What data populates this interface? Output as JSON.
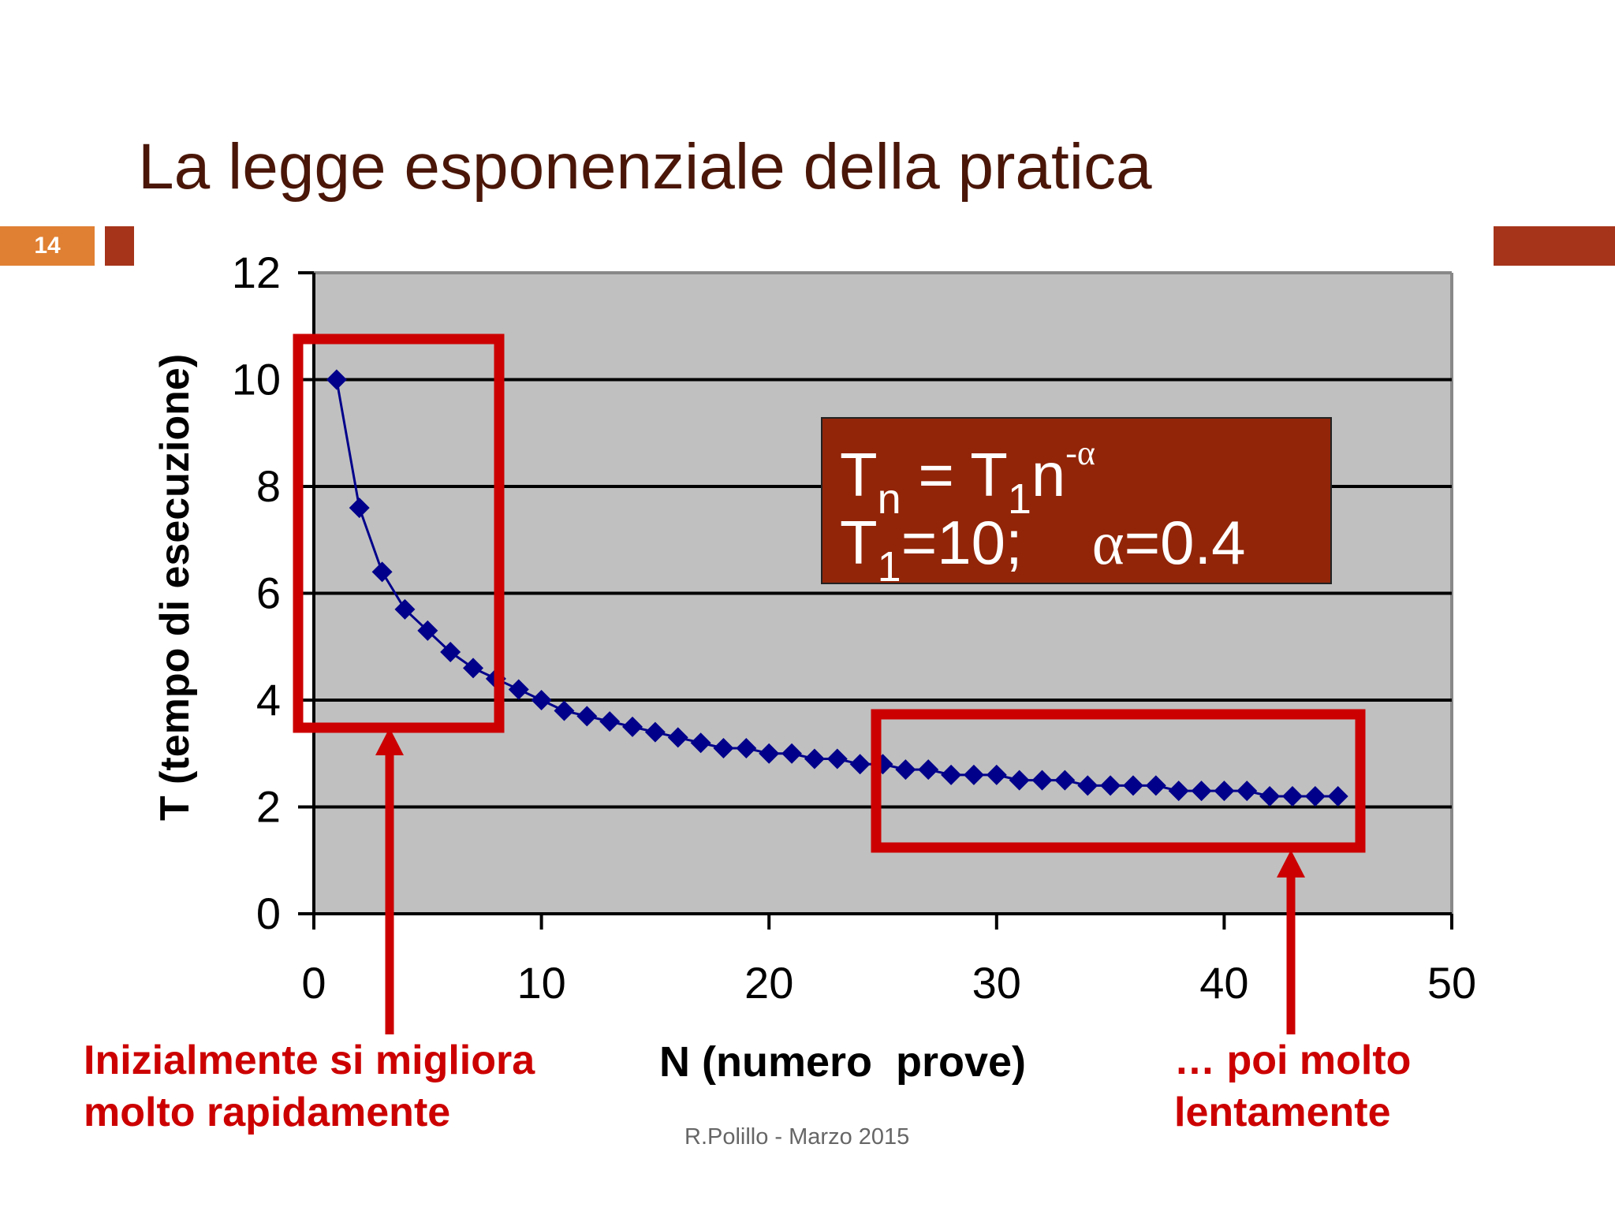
{
  "slide": {
    "title": "La legge esponenziale della pratica",
    "number": "14",
    "footer": "R.Polillo -  Marzo 2015"
  },
  "formula": {
    "T": "T",
    "n_sub": "n",
    "equals": " = ",
    "one_sub": "1",
    "n": "n",
    "exp": "-α",
    "line2_T1": "=10;",
    "alpha": "α",
    "line2_alpha": "=0.4"
  },
  "annotations": {
    "left_line1": "Inizialmente si migliora",
    "left_line2": "molto rapidamente",
    "right_line1": "… poi molto",
    "right_line2": "lentamente"
  },
  "colors": {
    "accent_orange": "#e08033",
    "accent_dark": "#a5341a",
    "highlight_red": "#cc0000",
    "series": "#00008b",
    "plot_bg": "#c0c0c0",
    "formula_bg": "#922508"
  },
  "chart_data": {
    "type": "line",
    "xlabel": "N (numero  prove)",
    "ylabel": "T (tempo di esecuzione)",
    "xlim": [
      0,
      50
    ],
    "ylim": [
      0,
      12
    ],
    "xticks": [
      "0",
      "10",
      "20",
      "30",
      "40",
      "50"
    ],
    "yticks": [
      "0",
      "2",
      "4",
      "6",
      "8",
      "10",
      "12"
    ],
    "grid": true,
    "marker": "diamond",
    "x": [
      1,
      2,
      3,
      4,
      5,
      6,
      7,
      8,
      9,
      10,
      11,
      12,
      13,
      14,
      15,
      16,
      17,
      18,
      19,
      20,
      21,
      22,
      23,
      24,
      25,
      26,
      27,
      28,
      29,
      30,
      31,
      32,
      33,
      34,
      35,
      36,
      37,
      38,
      39,
      40,
      41,
      42,
      43,
      44,
      45
    ],
    "y": [
      10,
      7.6,
      6.4,
      5.7,
      5.3,
      4.9,
      4.6,
      4.4,
      4.2,
      4.0,
      3.8,
      3.7,
      3.6,
      3.5,
      3.4,
      3.3,
      3.2,
      3.1,
      3.1,
      3.0,
      3.0,
      2.9,
      2.9,
      2.8,
      2.8,
      2.7,
      2.7,
      2.6,
      2.6,
      2.6,
      2.5,
      2.5,
      2.5,
      2.4,
      2.4,
      2.4,
      2.4,
      2.3,
      2.3,
      2.3,
      2.3,
      2.2,
      2.2,
      2.2,
      2.2
    ],
    "highlight_ranges_x": [
      [
        0,
        8
      ],
      [
        25,
        46
      ]
    ]
  }
}
